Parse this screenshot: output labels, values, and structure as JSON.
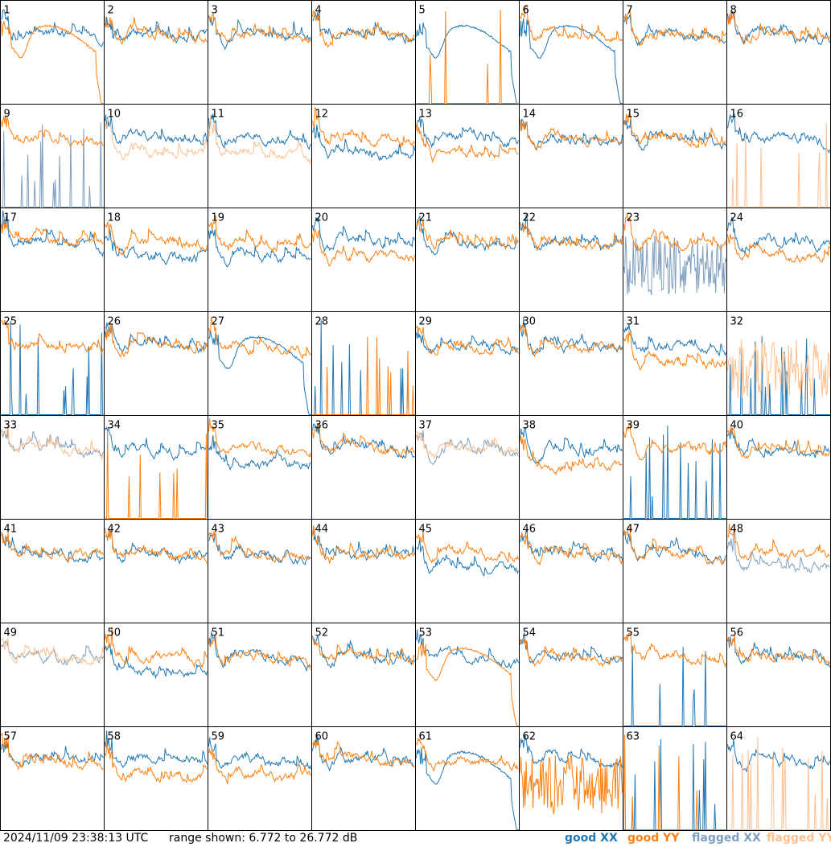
{
  "footer": {
    "timestamp": "2024/11/09 23:38:13 UTC",
    "range_text": "range shown: 6.772 to 26.772 dB"
  },
  "legend": [
    {
      "label": "good XX",
      "color": "#1f77b4"
    },
    {
      "label": "good YY",
      "color": "#ff7f0e"
    },
    {
      "label": "flagged XX",
      "color": "#7f9fbf"
    },
    {
      "label": "flagged YY",
      "color": "#ffbf8f"
    }
  ],
  "chart_data": {
    "type": "line",
    "title": "",
    "grid_rows": 8,
    "grid_cols": 8,
    "ylim": [
      6.772,
      26.772
    ],
    "y_units": "dB",
    "series_types": [
      "good XX",
      "good YY",
      "flagged XX",
      "flagged YY"
    ],
    "panels": [
      {
        "label": "1",
        "xx": "good",
        "yy": "good",
        "xx_shape": "normal",
        "yy_shape": "dip"
      },
      {
        "label": "2",
        "xx": "good",
        "yy": "good",
        "xx_shape": "normal",
        "yy_shape": "normal"
      },
      {
        "label": "3",
        "xx": "good",
        "yy": "good",
        "xx_shape": "normal",
        "yy_shape": "normal"
      },
      {
        "label": "4",
        "xx": "good",
        "yy": "good",
        "xx_shape": "normal",
        "yy_shape": "normal"
      },
      {
        "label": "5",
        "xx": "good",
        "yy": "good",
        "xx_shape": "dip",
        "yy_shape": "spiky"
      },
      {
        "label": "6",
        "xx": "good",
        "yy": "good",
        "xx_shape": "dip",
        "yy_shape": "normal"
      },
      {
        "label": "7",
        "xx": "good",
        "yy": "good",
        "xx_shape": "normal",
        "yy_shape": "normal"
      },
      {
        "label": "8",
        "xx": "good",
        "yy": "good",
        "xx_shape": "normal",
        "yy_shape": "normal"
      },
      {
        "label": "9",
        "xx": "flagged",
        "yy": "good",
        "xx_shape": "spiky",
        "yy_shape": "normal"
      },
      {
        "label": "10",
        "xx": "good",
        "yy": "flagged",
        "xx_shape": "normal",
        "yy_shape": "low"
      },
      {
        "label": "11",
        "xx": "good",
        "yy": "flagged",
        "xx_shape": "normal",
        "yy_shape": "low"
      },
      {
        "label": "12",
        "xx": "good",
        "yy": "good",
        "xx_shape": "low",
        "yy_shape": "normal"
      },
      {
        "label": "13",
        "xx": "good",
        "yy": "good",
        "xx_shape": "normal",
        "yy_shape": "low"
      },
      {
        "label": "14",
        "xx": "good",
        "yy": "good",
        "xx_shape": "normal",
        "yy_shape": "normal"
      },
      {
        "label": "15",
        "xx": "good",
        "yy": "good",
        "xx_shape": "normal",
        "yy_shape": "normal"
      },
      {
        "label": "16",
        "xx": "good",
        "yy": "flagged",
        "xx_shape": "normal",
        "yy_shape": "spiky"
      },
      {
        "label": "17",
        "xx": "good",
        "yy": "good",
        "xx_shape": "normal",
        "yy_shape": "normal"
      },
      {
        "label": "18",
        "xx": "good",
        "yy": "good",
        "xx_shape": "low",
        "yy_shape": "normal"
      },
      {
        "label": "19",
        "xx": "good",
        "yy": "good",
        "xx_shape": "low",
        "yy_shape": "normal"
      },
      {
        "label": "20",
        "xx": "good",
        "yy": "good",
        "xx_shape": "normal",
        "yy_shape": "low"
      },
      {
        "label": "21",
        "xx": "good",
        "yy": "good",
        "xx_shape": "normal",
        "yy_shape": "normal"
      },
      {
        "label": "22",
        "xx": "good",
        "yy": "good",
        "xx_shape": "normal",
        "yy_shape": "normal"
      },
      {
        "label": "23",
        "xx": "flagged",
        "yy": "good",
        "xx_shape": "noisy",
        "yy_shape": "normal"
      },
      {
        "label": "24",
        "xx": "good",
        "yy": "good",
        "xx_shape": "normal",
        "yy_shape": "low"
      },
      {
        "label": "25",
        "xx": "good",
        "yy": "good",
        "xx_shape": "spiky",
        "yy_shape": "normal"
      },
      {
        "label": "26",
        "xx": "good",
        "yy": "good",
        "xx_shape": "normal",
        "yy_shape": "normal"
      },
      {
        "label": "27",
        "xx": "good",
        "yy": "good",
        "xx_shape": "dip",
        "yy_shape": "normal"
      },
      {
        "label": "28",
        "xx": "good",
        "yy": "good",
        "xx_shape": "spiky",
        "yy_shape": "spiky"
      },
      {
        "label": "29",
        "xx": "good",
        "yy": "good",
        "xx_shape": "normal",
        "yy_shape": "normal"
      },
      {
        "label": "30",
        "xx": "good",
        "yy": "good",
        "xx_shape": "normal",
        "yy_shape": "normal"
      },
      {
        "label": "31",
        "xx": "good",
        "yy": "good",
        "xx_shape": "normal",
        "yy_shape": "low"
      },
      {
        "label": "32",
        "xx": "good",
        "yy": "flagged",
        "xx_shape": "spiky",
        "yy_shape": "noisy"
      },
      {
        "label": "33",
        "xx": "flagged",
        "yy": "flagged",
        "xx_shape": "normal",
        "yy_shape": "normal"
      },
      {
        "label": "34",
        "xx": "good",
        "yy": "good",
        "xx_shape": "normal",
        "yy_shape": "spiky"
      },
      {
        "label": "35",
        "xx": "good",
        "yy": "good",
        "xx_shape": "low",
        "yy_shape": "normal"
      },
      {
        "label": "36",
        "xx": "good",
        "yy": "good",
        "xx_shape": "normal",
        "yy_shape": "normal"
      },
      {
        "label": "37",
        "xx": "flagged",
        "yy": "flagged",
        "xx_shape": "normal",
        "yy_shape": "normal"
      },
      {
        "label": "38",
        "xx": "good",
        "yy": "good",
        "xx_shape": "normal",
        "yy_shape": "low"
      },
      {
        "label": "39",
        "xx": "good",
        "yy": "good",
        "xx_shape": "spiky",
        "yy_shape": "normal"
      },
      {
        "label": "40",
        "xx": "good",
        "yy": "good",
        "xx_shape": "normal",
        "yy_shape": "normal"
      },
      {
        "label": "41",
        "xx": "good",
        "yy": "good",
        "xx_shape": "normal",
        "yy_shape": "normal"
      },
      {
        "label": "42",
        "xx": "good",
        "yy": "good",
        "xx_shape": "normal",
        "yy_shape": "normal"
      },
      {
        "label": "43",
        "xx": "good",
        "yy": "good",
        "xx_shape": "normal",
        "yy_shape": "normal"
      },
      {
        "label": "44",
        "xx": "good",
        "yy": "good",
        "xx_shape": "normal",
        "yy_shape": "normal"
      },
      {
        "label": "45",
        "xx": "good",
        "yy": "good",
        "xx_shape": "low",
        "yy_shape": "normal"
      },
      {
        "label": "46",
        "xx": "good",
        "yy": "good",
        "xx_shape": "normal",
        "yy_shape": "normal"
      },
      {
        "label": "47",
        "xx": "good",
        "yy": "good",
        "xx_shape": "normal",
        "yy_shape": "normal"
      },
      {
        "label": "48",
        "xx": "flagged",
        "yy": "good",
        "xx_shape": "low",
        "yy_shape": "normal"
      },
      {
        "label": "49",
        "xx": "flagged",
        "yy": "flagged",
        "xx_shape": "normal",
        "yy_shape": "normal"
      },
      {
        "label": "50",
        "xx": "good",
        "yy": "good",
        "xx_shape": "low",
        "yy_shape": "normal"
      },
      {
        "label": "51",
        "xx": "good",
        "yy": "good",
        "xx_shape": "normal",
        "yy_shape": "normal"
      },
      {
        "label": "52",
        "xx": "good",
        "yy": "good",
        "xx_shape": "normal",
        "yy_shape": "normal"
      },
      {
        "label": "53",
        "xx": "good",
        "yy": "good",
        "xx_shape": "normal",
        "yy_shape": "dip"
      },
      {
        "label": "54",
        "xx": "good",
        "yy": "good",
        "xx_shape": "normal",
        "yy_shape": "normal"
      },
      {
        "label": "55",
        "xx": "good",
        "yy": "good",
        "xx_shape": "spiky",
        "yy_shape": "normal"
      },
      {
        "label": "56",
        "xx": "good",
        "yy": "good",
        "xx_shape": "normal",
        "yy_shape": "normal"
      },
      {
        "label": "57",
        "xx": "good",
        "yy": "good",
        "xx_shape": "normal",
        "yy_shape": "normal"
      },
      {
        "label": "58",
        "xx": "good",
        "yy": "good",
        "xx_shape": "normal",
        "yy_shape": "low"
      },
      {
        "label": "59",
        "xx": "good",
        "yy": "good",
        "xx_shape": "normal",
        "yy_shape": "low"
      },
      {
        "label": "60",
        "xx": "good",
        "yy": "good",
        "xx_shape": "normal",
        "yy_shape": "normal"
      },
      {
        "label": "61",
        "xx": "good",
        "yy": "good",
        "xx_shape": "dip",
        "yy_shape": "normal"
      },
      {
        "label": "62",
        "xx": "good",
        "yy": "good",
        "xx_shape": "normal",
        "yy_shape": "noisy"
      },
      {
        "label": "63",
        "xx": "good",
        "yy": "good",
        "xx_shape": "spiky",
        "yy_shape": "spiky"
      },
      {
        "label": "64",
        "xx": "good",
        "yy": "flagged",
        "xx_shape": "normal",
        "yy_shape": "spiky"
      }
    ]
  }
}
